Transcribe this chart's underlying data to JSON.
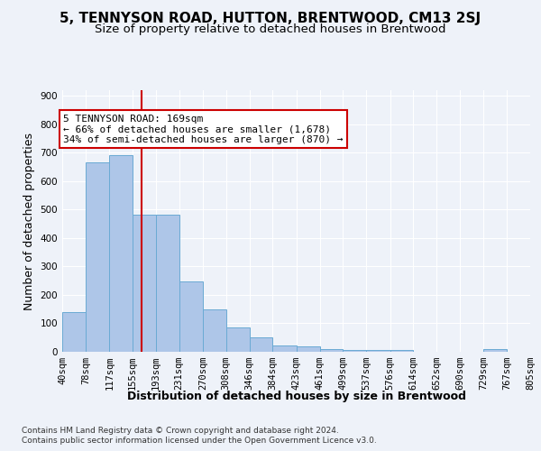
{
  "title": "5, TENNYSON ROAD, HUTTON, BRENTWOOD, CM13 2SJ",
  "subtitle": "Size of property relative to detached houses in Brentwood",
  "xlabel": "Distribution of detached houses by size in Brentwood",
  "ylabel": "Number of detached properties",
  "footer_line1": "Contains HM Land Registry data © Crown copyright and database right 2024.",
  "footer_line2": "Contains public sector information licensed under the Open Government Licence v3.0.",
  "annotation_line1": "5 TENNYSON ROAD: 169sqm",
  "annotation_line2": "← 66% of detached houses are smaller (1,678)",
  "annotation_line3": "34% of semi-detached houses are larger (870) →",
  "bar_color": "#aec6e8",
  "bar_edge_color": "#6aaad4",
  "redline_color": "#cc0000",
  "redline_x": 169,
  "bin_edges": [
    40,
    78,
    117,
    155,
    193,
    231,
    270,
    308,
    346,
    384,
    423,
    461,
    499,
    537,
    576,
    614,
    652,
    690,
    729,
    767,
    805
  ],
  "bar_heights": [
    140,
    667,
    693,
    483,
    482,
    248,
    148,
    85,
    51,
    22,
    18,
    10,
    5,
    5,
    5,
    1,
    0,
    0,
    10,
    0
  ],
  "ylim": [
    0,
    920
  ],
  "yticks": [
    0,
    100,
    200,
    300,
    400,
    500,
    600,
    700,
    800,
    900
  ],
  "background_color": "#eef2f9",
  "grid_color": "#ffffff",
  "title_fontsize": 11,
  "subtitle_fontsize": 9.5,
  "xlabel_fontsize": 9,
  "ylabel_fontsize": 9,
  "tick_fontsize": 7.5,
  "footer_fontsize": 6.5,
  "annotation_fontsize": 8
}
